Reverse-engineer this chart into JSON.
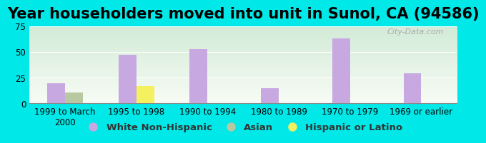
{
  "title": "Year householders moved into unit in Sunol, CA (94586)",
  "categories": [
    "1999 to March\n2000",
    "1995 to 1998",
    "1990 to 1994",
    "1980 to 1989",
    "1970 to 1979",
    "1969 or earlier"
  ],
  "white_non_hispanic": [
    20,
    47,
    53,
    15,
    63,
    29
  ],
  "asian": [
    11,
    0,
    0,
    0,
    0,
    0
  ],
  "hispanic_or_latino": [
    0,
    17,
    0,
    0,
    0,
    0
  ],
  "bar_width": 0.25,
  "ylim": [
    0,
    75
  ],
  "yticks": [
    0,
    25,
    50,
    75
  ],
  "color_white": "#c8a8e0",
  "color_asian": "#b8c8a0",
  "color_hispanic": "#f5f060",
  "bg_outer": "#00e8e8",
  "title_fontsize": 15,
  "tick_fontsize": 8.5,
  "legend_fontsize": 9.5,
  "watermark": "City-Data.com"
}
